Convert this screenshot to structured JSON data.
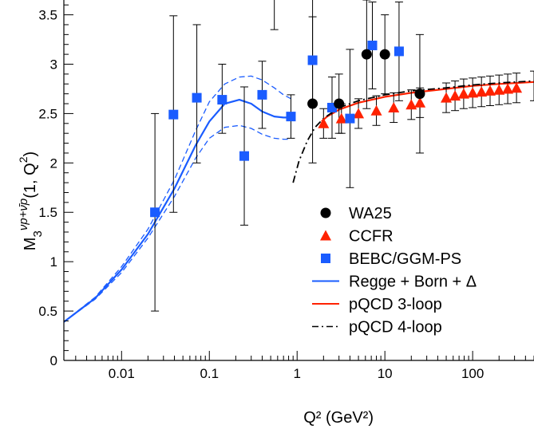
{
  "colors": {
    "wa25": "#000000",
    "ccfr": "#ff2200",
    "bebc": "#1a5cff",
    "regge": "#1a5cff",
    "pqcd3": "#ff2200",
    "pqcd4": "#000000"
  },
  "chart_data": {
    "type": "scatter",
    "title": "",
    "xlabel": "Q² (GeV²)",
    "ylabel": {
      "prefix": "M",
      "sub": "3",
      "sup": "νp+ν̄p",
      "arg_open": "(1, Q",
      "arg_sup": "2",
      "arg_close": ")"
    },
    "x_scale": "log",
    "xlim": [
      0.0022,
      500
    ],
    "ylim": [
      0,
      3.65
    ],
    "x_ticks": [
      0.01,
      0.1,
      1,
      10,
      100
    ],
    "x_tick_labels": [
      "0.01",
      "0.1",
      "1",
      "10",
      "100"
    ],
    "y_ticks": [
      0,
      0.5,
      1,
      1.5,
      2,
      2.5,
      3,
      3.5
    ],
    "y_tick_labels": [
      "0",
      "0.5",
      "1",
      "1.5",
      "2",
      "2.5",
      "3",
      "3.5"
    ],
    "grid": false,
    "legend_position": "lower-right",
    "legend": [
      {
        "label": "WA25",
        "kind": "circle",
        "series": "wa25"
      },
      {
        "label": "CCFR",
        "kind": "triangle",
        "series": "ccfr"
      },
      {
        "label": "BEBC/GGM-PS",
        "kind": "square",
        "series": "bebc"
      },
      {
        "label": "Regge + Born + Δ",
        "kind": "line-solid",
        "series": "regge"
      },
      {
        "label": "pQCD 3-loop",
        "kind": "line-solid",
        "series": "pqcd3"
      },
      {
        "label": "pQCD 4-loop",
        "kind": "line-dashdot",
        "series": "pqcd4"
      }
    ],
    "points": {
      "bebc": [
        {
          "x": 0.024,
          "y": 1.5,
          "lo": 0.5,
          "hi": 2.5
        },
        {
          "x": 0.039,
          "y": 2.49,
          "lo": 1.5,
          "hi": 3.49
        },
        {
          "x": 0.072,
          "y": 2.66,
          "lo": 2.0,
          "hi": 3.4
        },
        {
          "x": 0.14,
          "y": 2.64,
          "lo": 2.3,
          "hi": 3.0
        },
        {
          "x": 0.25,
          "y": 2.07,
          "lo": 1.37,
          "hi": 2.77
        },
        {
          "x": 0.4,
          "y": 2.69,
          "lo": 2.35,
          "hi": 3.03
        },
        {
          "x": 0.85,
          "y": 2.47,
          "lo": 2.25,
          "hi": 2.69
        },
        {
          "x": 1.5,
          "y": 3.04,
          "lo": 2.6,
          "hi": 3.48
        },
        {
          "x": 2.5,
          "y": 2.56,
          "lo": 2.25,
          "hi": 2.87
        },
        {
          "x": 4.0,
          "y": 2.45,
          "lo": 1.75,
          "hi": 3.15
        },
        {
          "x": 7.2,
          "y": 3.19,
          "lo": 2.75,
          "hi": 3.63
        },
        {
          "x": 14.5,
          "y": 3.13,
          "lo": 2.63,
          "hi": 3.63
        }
      ],
      "wa25": [
        {
          "x": 1.5,
          "y": 2.6,
          "lo": 2.0,
          "hi": 3.7
        },
        {
          "x": 3.0,
          "y": 2.6,
          "lo": 2.3,
          "hi": 2.9
        },
        {
          "x": 6.2,
          "y": 3.1,
          "lo": 2.55,
          "hi": 3.65
        },
        {
          "x": 10.0,
          "y": 3.1,
          "lo": 2.7,
          "hi": 3.5
        },
        {
          "x": 25.0,
          "y": 2.7,
          "lo": 2.1,
          "hi": 3.3
        }
      ],
      "wa25_extra_bars": [
        {
          "x": 0.55,
          "lo": 3.35,
          "hi": 3.7
        }
      ],
      "ccfr": [
        {
          "x": 2.0,
          "y": 2.4,
          "lo": 2.25,
          "hi": 2.55
        },
        {
          "x": 3.2,
          "y": 2.45,
          "lo": 2.3,
          "hi": 2.6
        },
        {
          "x": 5.0,
          "y": 2.5,
          "lo": 2.35,
          "hi": 2.65
        },
        {
          "x": 8.0,
          "y": 2.53,
          "lo": 2.38,
          "hi": 2.68
        },
        {
          "x": 12.6,
          "y": 2.56,
          "lo": 2.41,
          "hi": 2.71
        },
        {
          "x": 20.0,
          "y": 2.59,
          "lo": 2.44,
          "hi": 2.74
        },
        {
          "x": 25.1,
          "y": 2.61,
          "lo": 2.46,
          "hi": 2.76
        },
        {
          "x": 50.0,
          "y": 2.66,
          "lo": 2.51,
          "hi": 2.81
        },
        {
          "x": 63.0,
          "y": 2.68,
          "lo": 2.53,
          "hi": 2.83
        },
        {
          "x": 79.0,
          "y": 2.7,
          "lo": 2.55,
          "hi": 2.85
        },
        {
          "x": 100.0,
          "y": 2.71,
          "lo": 2.56,
          "hi": 2.86
        },
        {
          "x": 126.0,
          "y": 2.72,
          "lo": 2.57,
          "hi": 2.87
        },
        {
          "x": 158.0,
          "y": 2.73,
          "lo": 2.58,
          "hi": 2.88
        },
        {
          "x": 200.0,
          "y": 2.74,
          "lo": 2.59,
          "hi": 2.89
        },
        {
          "x": 251.0,
          "y": 2.75,
          "lo": 2.6,
          "hi": 2.9
        },
        {
          "x": 316.0,
          "y": 2.76,
          "lo": 2.61,
          "hi": 2.91
        },
        {
          "x": 500.0,
          "y": 2.78,
          "lo": 2.63,
          "hi": 2.93
        }
      ]
    },
    "curves": {
      "regge": {
        "x": [
          0.0022,
          0.005,
          0.01,
          0.02,
          0.04,
          0.07,
          0.1,
          0.15,
          0.22,
          0.3,
          0.4,
          0.55,
          0.7,
          0.85
        ],
        "y": [
          0.39,
          0.63,
          0.92,
          1.28,
          1.74,
          2.18,
          2.42,
          2.6,
          2.64,
          2.6,
          2.52,
          2.47,
          2.46,
          2.46
        ]
      },
      "regge_upper": {
        "x": [
          0.0022,
          0.005,
          0.01,
          0.02,
          0.04,
          0.07,
          0.1,
          0.15,
          0.22,
          0.3,
          0.4,
          0.55,
          0.7,
          0.85
        ],
        "y": [
          0.39,
          0.64,
          0.95,
          1.33,
          1.83,
          2.33,
          2.62,
          2.8,
          2.87,
          2.88,
          2.84,
          2.76,
          2.69,
          2.65
        ]
      },
      "regge_lower": {
        "x": [
          0.0022,
          0.005,
          0.01,
          0.02,
          0.04,
          0.07,
          0.1,
          0.15,
          0.22,
          0.3,
          0.4,
          0.55,
          0.7,
          0.85
        ],
        "y": [
          0.39,
          0.62,
          0.89,
          1.24,
          1.66,
          2.05,
          2.25,
          2.36,
          2.38,
          2.35,
          2.29,
          2.25,
          2.24,
          2.24
        ]
      },
      "pqcd3": {
        "x": [
          1.9,
          2.2,
          3,
          5,
          10,
          20,
          50,
          100,
          200,
          500
        ],
        "y": [
          2.42,
          2.47,
          2.54,
          2.61,
          2.67,
          2.71,
          2.75,
          2.78,
          2.8,
          2.82
        ]
      },
      "pqcd4": {
        "x": [
          0.9,
          1.05,
          1.3,
          1.6,
          2.0,
          3,
          5,
          10,
          20,
          50,
          100,
          200,
          500
        ],
        "y": [
          1.8,
          2.02,
          2.22,
          2.36,
          2.45,
          2.56,
          2.63,
          2.69,
          2.73,
          2.76,
          2.79,
          2.81,
          2.83
        ]
      }
    }
  }
}
